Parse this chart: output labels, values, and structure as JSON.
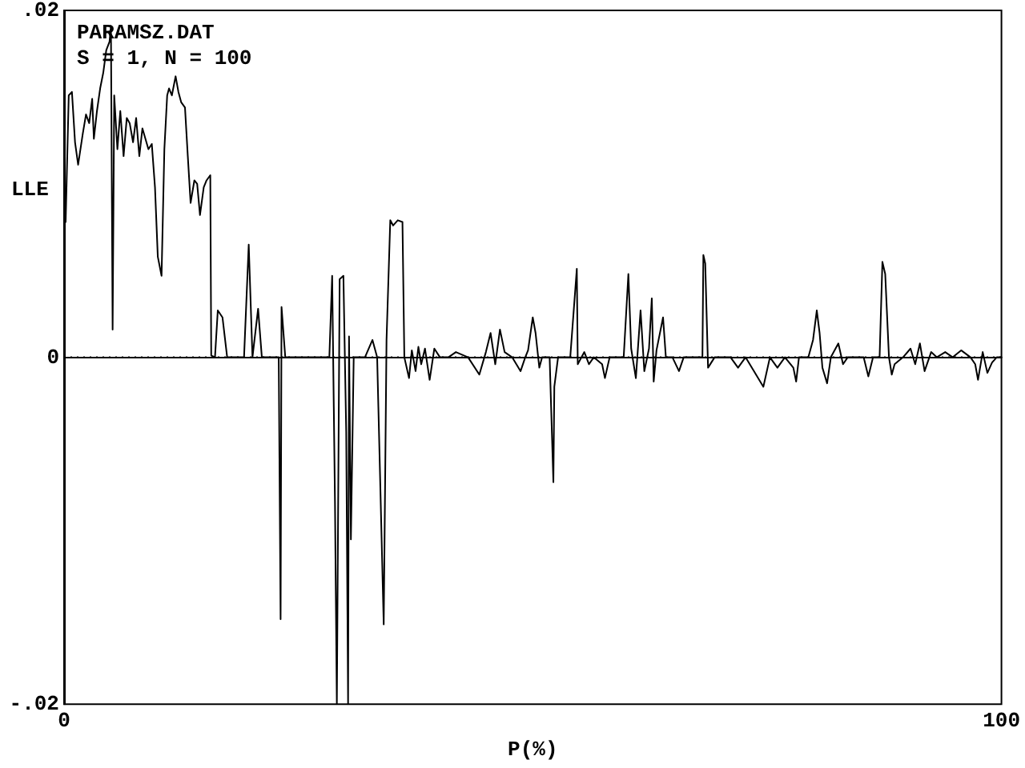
{
  "chart_data": {
    "type": "line",
    "xlabel": "P(%)",
    "ylabel": "LLE",
    "annotations": [
      "PARAMSZ.DAT",
      "S = 1, N = 100"
    ],
    "xlim": [
      0,
      100
    ],
    "xticks": [
      0,
      100
    ],
    "ylim": [
      -0.02,
      0.02
    ],
    "yticks": [
      {
        "value": -0.02,
        "label": "-.02"
      },
      {
        "value": 0,
        "label": "0"
      },
      {
        "value": 0.02,
        "label": ".02"
      }
    ],
    "grid": false,
    "marker": "none",
    "line_style": "solid",
    "ref_lines": [
      {
        "axis": "y",
        "value": 0,
        "label": null,
        "color": "#000000",
        "line_style": "dotted"
      }
    ],
    "series": [
      {
        "color": "#000000",
        "x": [
          0,
          0.17,
          0.5,
          0.84,
          1.17,
          1.5,
          2.0,
          2.34,
          2.68,
          3.0,
          3.18,
          3.51,
          3.85,
          4.18,
          4.5,
          4.85,
          5.0,
          5.18,
          5.35,
          5.69,
          6.0,
          6.35,
          6.69,
          7.0,
          7.36,
          7.69,
          8.03,
          8.36,
          9.0,
          9.36,
          9.7,
          10.0,
          10.4,
          10.7,
          11.0,
          11.2,
          11.5,
          11.9,
          12.2,
          12.5,
          12.9,
          13.2,
          13.5,
          13.9,
          14.2,
          14.5,
          14.9,
          15.2,
          15.6,
          15.7,
          16.1,
          16.4,
          16.9,
          17.4,
          18.4,
          19.2,
          19.7,
          20.1,
          20.7,
          21.1,
          22.1,
          22.9,
          23.1,
          23.2,
          23.6,
          25.1,
          26.8,
          27.6,
          28.3,
          28.6,
          28.9,
          29.1,
          29.4,
          29.8,
          30.1,
          30.3,
          30.4,
          30.6,
          30.9,
          32.1,
          32.9,
          33.4,
          34.1,
          34.4,
          34.8,
          35.1,
          35.6,
          36.1,
          36.3,
          36.8,
          37.1,
          37.5,
          37.8,
          38.1,
          38.5,
          39.0,
          39.5,
          40.1,
          41.0,
          41.8,
          43.1,
          44.3,
          45.0,
          45.5,
          46.0,
          46.5,
          47.0,
          47.8,
          48.7,
          49.2,
          49.5,
          50.0,
          50.3,
          50.7,
          51.0,
          51.8,
          52.2,
          52.3,
          52.7,
          53.5,
          54.0,
          54.7,
          54.8,
          55.5,
          56.0,
          56.5,
          57.4,
          57.7,
          58.2,
          59.7,
          60.2,
          60.5,
          61.0,
          61.5,
          61.9,
          62.4,
          62.7,
          62.9,
          63.2,
          63.9,
          64.2,
          64.9,
          65.6,
          66.1,
          66.9,
          68.1,
          68.2,
          68.4,
          68.7,
          69.4,
          71.1,
          71.9,
          72.7,
          73.6,
          74.6,
          75.3,
          76.1,
          76.9,
          77.8,
          78.1,
          78.4,
          79.4,
          79.9,
          80.3,
          80.6,
          80.9,
          81.4,
          81.8,
          82.6,
          83.1,
          83.6,
          85.3,
          85.8,
          86.3,
          87.0,
          87.3,
          87.6,
          88.0,
          88.3,
          88.6,
          89.5,
          90.3,
          90.8,
          91.3,
          91.8,
          92.5,
          93.1,
          94.0,
          94.8,
          95.7,
          96.7,
          97.2,
          97.5,
          98.0,
          98.5,
          99.0,
          99.5,
          100
        ],
        "values": [
          0.0084,
          0.0078,
          0.0151,
          0.0153,
          0.0124,
          0.0111,
          0.0129,
          0.014,
          0.0135,
          0.0149,
          0.0126,
          0.0142,
          0.0155,
          0.0164,
          0.0177,
          0.0182,
          0.0191,
          0.0016,
          0.0151,
          0.012,
          0.0142,
          0.0116,
          0.0138,
          0.0135,
          0.0124,
          0.0138,
          0.0116,
          0.0132,
          0.012,
          0.0123,
          0.0098,
          0.0058,
          0.0047,
          0.012,
          0.0151,
          0.0155,
          0.0151,
          0.0162,
          0.0153,
          0.0147,
          0.0144,
          0.0116,
          0.0089,
          0.0102,
          0.01,
          0.0082,
          0.0098,
          0.0102,
          0.0105,
          0.0001,
          0,
          0.0027,
          0.0023,
          0,
          0,
          0,
          0.0065,
          0,
          0.0028,
          0,
          0,
          0,
          -0.0151,
          0.0029,
          0,
          0,
          0,
          0,
          0,
          0.0047,
          -0.0083,
          -0.02,
          0.0045,
          0.0047,
          -0.0043,
          -0.02,
          0.0012,
          -0.0105,
          0,
          0,
          0.001,
          0,
          -0.0154,
          0.001,
          0.0079,
          0.0076,
          0.0079,
          0.0078,
          0,
          -0.0012,
          0.0004,
          -0.0008,
          0.0006,
          -0.0004,
          0.0005,
          -0.0013,
          0.0005,
          0,
          0,
          0.0003,
          0,
          -0.001,
          0.0003,
          0.0014,
          -0.0004,
          0.0016,
          0.0003,
          0,
          -0.0008,
          0,
          0.0004,
          0.0023,
          0.0014,
          -0.0006,
          0,
          0,
          -0.0072,
          -0.0017,
          0,
          0,
          0,
          0.0051,
          -0.0004,
          0.0003,
          -0.0004,
          0,
          -0.0004,
          -0.0012,
          0,
          0,
          0.0048,
          0.0005,
          -0.0012,
          0.0027,
          -0.0008,
          0.0005,
          0.0034,
          -0.0014,
          0.0004,
          0.0023,
          0,
          0,
          -0.0008,
          0,
          0,
          0,
          0.0059,
          0.0054,
          -0.0006,
          0,
          0,
          -0.0006,
          0,
          -0.0008,
          -0.0017,
          0,
          -0.0006,
          0,
          -0.0006,
          -0.0014,
          0,
          0,
          0.001,
          0.0027,
          0.0014,
          -0.0006,
          -0.0015,
          0,
          0.0008,
          -0.0004,
          0,
          0,
          -0.0011,
          0,
          0,
          0.0055,
          0.0048,
          0,
          -0.001,
          -0.0004,
          0,
          0.0005,
          -0.0004,
          0.0008,
          -0.0008,
          0.0003,
          0,
          0.0003,
          0,
          0.0004,
          0,
          -0.0004,
          -0.0013,
          0.0003,
          -0.0009,
          -0.0003,
          0,
          0
        ]
      }
    ]
  }
}
